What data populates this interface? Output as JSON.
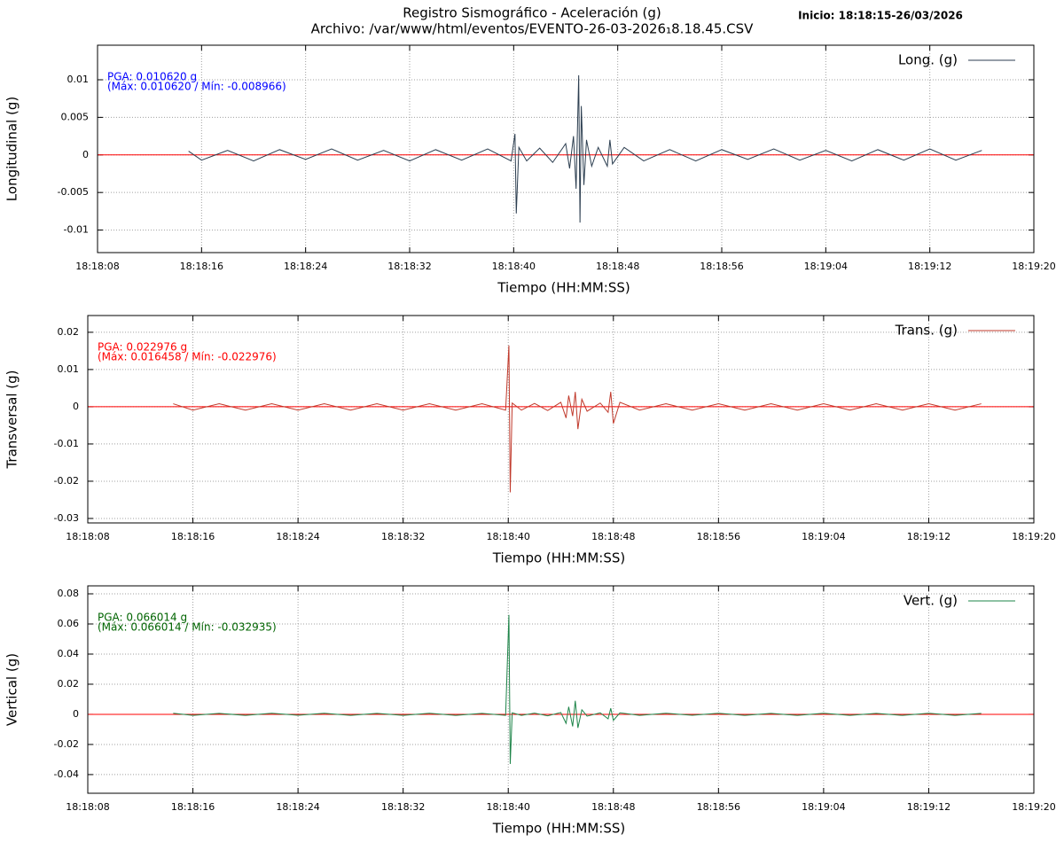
{
  "header": {
    "title": "Registro Sismográfico - Aceleración (g)",
    "subtitle": "Archivo: /var/www/html/eventos/EVENTO-26-03-2026₁8.18.45.CSV",
    "start": "Inicio: 18:18:15-26/03/2026"
  },
  "chart_data": [
    {
      "type": "line",
      "xlabel": "Tiempo (HH:MM:SS)",
      "ylabel": "Longitudinal (g)",
      "annotations": [
        "PGA: 0.010620 g",
        "(Máx: 0.010620 / Mín: -0.008966)"
      ],
      "annotation_color": "#0000ff",
      "zeroaxis_color": "#ff0000",
      "grid": true,
      "legend": "top-right",
      "xlim": [
        "18:18:08",
        "18:19:20"
      ],
      "xticks": [
        "18:18:08",
        "18:18:16",
        "18:18:24",
        "18:18:32",
        "18:18:40",
        "18:18:48",
        "18:18:56",
        "18:19:04",
        "18:19:12",
        "18:19:20"
      ],
      "ylim": [
        -0.013,
        0.0146
      ],
      "yticks": [
        -0.01,
        -0.005,
        0,
        0.005,
        0.01
      ],
      "x": [
        "18:18:15",
        "18:18:16",
        "18:18:18",
        "18:18:20",
        "18:18:22",
        "18:18:24",
        "18:18:26",
        "18:18:28",
        "18:18:30",
        "18:18:32",
        "18:18:34",
        "18:18:36",
        "18:18:38",
        "18:18:39.8",
        "18:18:40.1",
        "18:18:40.2",
        "18:18:40.4",
        "18:18:41",
        "18:18:42",
        "18:18:43",
        "18:18:44",
        "18:18:44.3",
        "18:18:44.6",
        "18:18:44.8",
        "18:18:45",
        "18:18:45.1",
        "18:18:45.2",
        "18:18:45.4",
        "18:18:45.6",
        "18:18:46",
        "18:18:46.5",
        "18:18:47.2",
        "18:18:47.4",
        "18:18:47.6",
        "18:18:48.5",
        "18:18:50",
        "18:18:52",
        "18:18:54",
        "18:18:56",
        "18:18:58",
        "18:19:00",
        "18:19:02",
        "18:19:04",
        "18:19:06",
        "18:19:08",
        "18:19:10",
        "18:19:12",
        "18:19:14",
        "18:19:16"
      ],
      "series": [
        {
          "name": "Long. (g)",
          "color": "#2c3e50",
          "values": [
            0.0005,
            -0.0007,
            0.0006,
            -0.0008,
            0.0007,
            -0.0006,
            0.0008,
            -0.0007,
            0.0006,
            -0.0008,
            0.0007,
            -0.0007,
            0.0008,
            -0.0008,
            0.0028,
            -0.0078,
            0.001,
            -0.0008,
            0.0009,
            -0.001,
            0.0015,
            -0.0018,
            0.0025,
            -0.0045,
            0.0106,
            -0.009,
            0.0065,
            -0.004,
            0.002,
            -0.0015,
            0.001,
            -0.0015,
            0.002,
            -0.0012,
            0.001,
            -0.0008,
            0.0007,
            -0.0008,
            0.0007,
            -0.0006,
            0.0008,
            -0.0007,
            0.0006,
            -0.0008,
            0.0007,
            -0.0007,
            0.0008,
            -0.0007,
            0.0006
          ]
        }
      ]
    },
    {
      "type": "line",
      "xlabel": "Tiempo (HH:MM:SS)",
      "ylabel": "Transversal (g)",
      "annotations": [
        "PGA: 0.022976 g",
        "(Máx: 0.016458 / Mín: -0.022976)"
      ],
      "annotation_color": "#ff0000",
      "zeroaxis_color": "#ff0000",
      "grid": true,
      "legend": "top-right",
      "xlim": [
        "18:18:08",
        "18:19:20"
      ],
      "xticks": [
        "18:18:08",
        "18:18:16",
        "18:18:24",
        "18:18:32",
        "18:18:40",
        "18:18:48",
        "18:18:56",
        "18:19:04",
        "18:19:12",
        "18:19:20"
      ],
      "ylim": [
        -0.0312,
        0.0245
      ],
      "yticks": [
        -0.03,
        -0.02,
        -0.01,
        0,
        0.01,
        0.02
      ],
      "x": [
        "18:18:14.5",
        "18:18:16",
        "18:18:18",
        "18:18:20",
        "18:18:22",
        "18:18:24",
        "18:18:26",
        "18:18:28",
        "18:18:30",
        "18:18:32",
        "18:18:34",
        "18:18:36",
        "18:18:38",
        "18:18:39.8",
        "18:18:40.05",
        "18:18:40.15",
        "18:18:40.3",
        "18:18:41",
        "18:18:42",
        "18:18:43",
        "18:18:44",
        "18:18:44.4",
        "18:18:44.6",
        "18:18:44.9",
        "18:18:45.1",
        "18:18:45.3",
        "18:18:45.6",
        "18:18:46",
        "18:18:47",
        "18:18:47.6",
        "18:18:47.8",
        "18:18:48",
        "18:18:48.5",
        "18:18:50",
        "18:18:52",
        "18:18:54",
        "18:18:56",
        "18:18:58",
        "18:19:00",
        "18:19:02",
        "18:19:04",
        "18:19:06",
        "18:19:08",
        "18:19:10",
        "18:19:12",
        "18:19:14",
        "18:19:16"
      ],
      "series": [
        {
          "name": "Trans. (g)",
          "color": "#c0392b",
          "values": [
            0.0008,
            -0.0009,
            0.0008,
            -0.0009,
            0.0008,
            -0.0009,
            0.0008,
            -0.0009,
            0.0008,
            -0.0009,
            0.0008,
            -0.0009,
            0.0008,
            -0.0009,
            0.016458,
            -0.022976,
            0.001,
            -0.0009,
            0.0009,
            -0.001,
            0.0012,
            -0.003,
            0.003,
            -0.0025,
            0.004,
            -0.006,
            0.002,
            -0.0012,
            0.001,
            -0.0015,
            0.004,
            -0.0045,
            0.0012,
            -0.0009,
            0.0008,
            -0.0009,
            0.0008,
            -0.0009,
            0.0008,
            -0.0009,
            0.0008,
            -0.0009,
            0.0008,
            -0.0009,
            0.0008,
            -0.0009,
            0.0008
          ]
        }
      ]
    },
    {
      "type": "line",
      "xlabel": "Tiempo (HH:MM:SS)",
      "ylabel": "Vertical (g)",
      "annotations": [
        "PGA: 0.066014 g",
        "(Máx: 0.066014 / Mín: -0.032935)"
      ],
      "annotation_color": "#006400",
      "zeroaxis_color": "#ff0000",
      "grid": true,
      "legend": "top-right",
      "xlim": [
        "18:18:08",
        "18:19:20"
      ],
      "xticks": [
        "18:18:08",
        "18:18:16",
        "18:18:24",
        "18:18:32",
        "18:18:40",
        "18:18:48",
        "18:18:56",
        "18:19:04",
        "18:19:12",
        "18:19:20"
      ],
      "ylim": [
        -0.0524,
        0.0853
      ],
      "yticks": [
        -0.04,
        -0.02,
        0,
        0.02,
        0.04,
        0.06,
        0.08
      ],
      "x": [
        "18:18:14.5",
        "18:18:16",
        "18:18:18",
        "18:18:20",
        "18:18:22",
        "18:18:24",
        "18:18:26",
        "18:18:28",
        "18:18:30",
        "18:18:32",
        "18:18:34",
        "18:18:36",
        "18:18:38",
        "18:18:39.8",
        "18:18:40.05",
        "18:18:40.15",
        "18:18:40.3",
        "18:18:41",
        "18:18:42",
        "18:18:43",
        "18:18:44",
        "18:18:44.4",
        "18:18:44.6",
        "18:18:44.9",
        "18:18:45.1",
        "18:18:45.3",
        "18:18:45.6",
        "18:18:46",
        "18:18:47",
        "18:18:47.6",
        "18:18:47.8",
        "18:18:48",
        "18:18:48.5",
        "18:18:50",
        "18:18:52",
        "18:18:54",
        "18:18:56",
        "18:18:58",
        "18:19:00",
        "18:19:02",
        "18:19:04",
        "18:19:06",
        "18:19:08",
        "18:19:10",
        "18:19:12",
        "18:19:14",
        "18:19:16"
      ],
      "series": [
        {
          "name": "Vert. (g)",
          "color": "#1e8449",
          "values": [
            0.0007,
            -0.0007,
            0.0006,
            -0.0007,
            0.0007,
            -0.0006,
            0.0007,
            -0.0007,
            0.0006,
            -0.0007,
            0.0007,
            -0.0007,
            0.0006,
            -0.0007,
            0.066014,
            -0.032935,
            0.001,
            -0.0007,
            0.0008,
            -0.001,
            0.0012,
            -0.006,
            0.005,
            -0.008,
            0.009,
            -0.009,
            0.003,
            -0.0012,
            0.001,
            -0.003,
            0.004,
            -0.004,
            0.001,
            -0.0007,
            0.0007,
            -0.0006,
            0.0007,
            -0.0007,
            0.0006,
            -0.0007,
            0.0007,
            -0.0007,
            0.0006,
            -0.0007,
            0.0007,
            -0.0007,
            0.0006
          ]
        }
      ]
    }
  ]
}
